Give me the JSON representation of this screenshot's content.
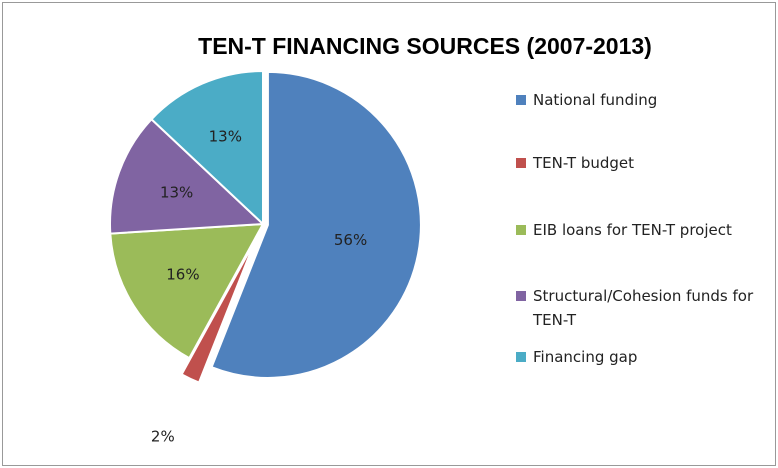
{
  "chart_data": {
    "type": "pie",
    "title": "TEN-T FINANCING SOURCES (2007-2013)",
    "categories": [
      "National funding",
      "TEN-T budget",
      "EIB loans for TEN-T project",
      "Structural/Cohesion funds for TEN-T",
      "Financing gap"
    ],
    "values": [
      56,
      2,
      16,
      13,
      13
    ],
    "value_labels": [
      "56%",
      "2%",
      "16%",
      "13%",
      "13%"
    ],
    "colors": [
      "#4f81bd",
      "#c0504d",
      "#9bbb59",
      "#8064a2",
      "#4bacc6"
    ],
    "legend": "right"
  }
}
